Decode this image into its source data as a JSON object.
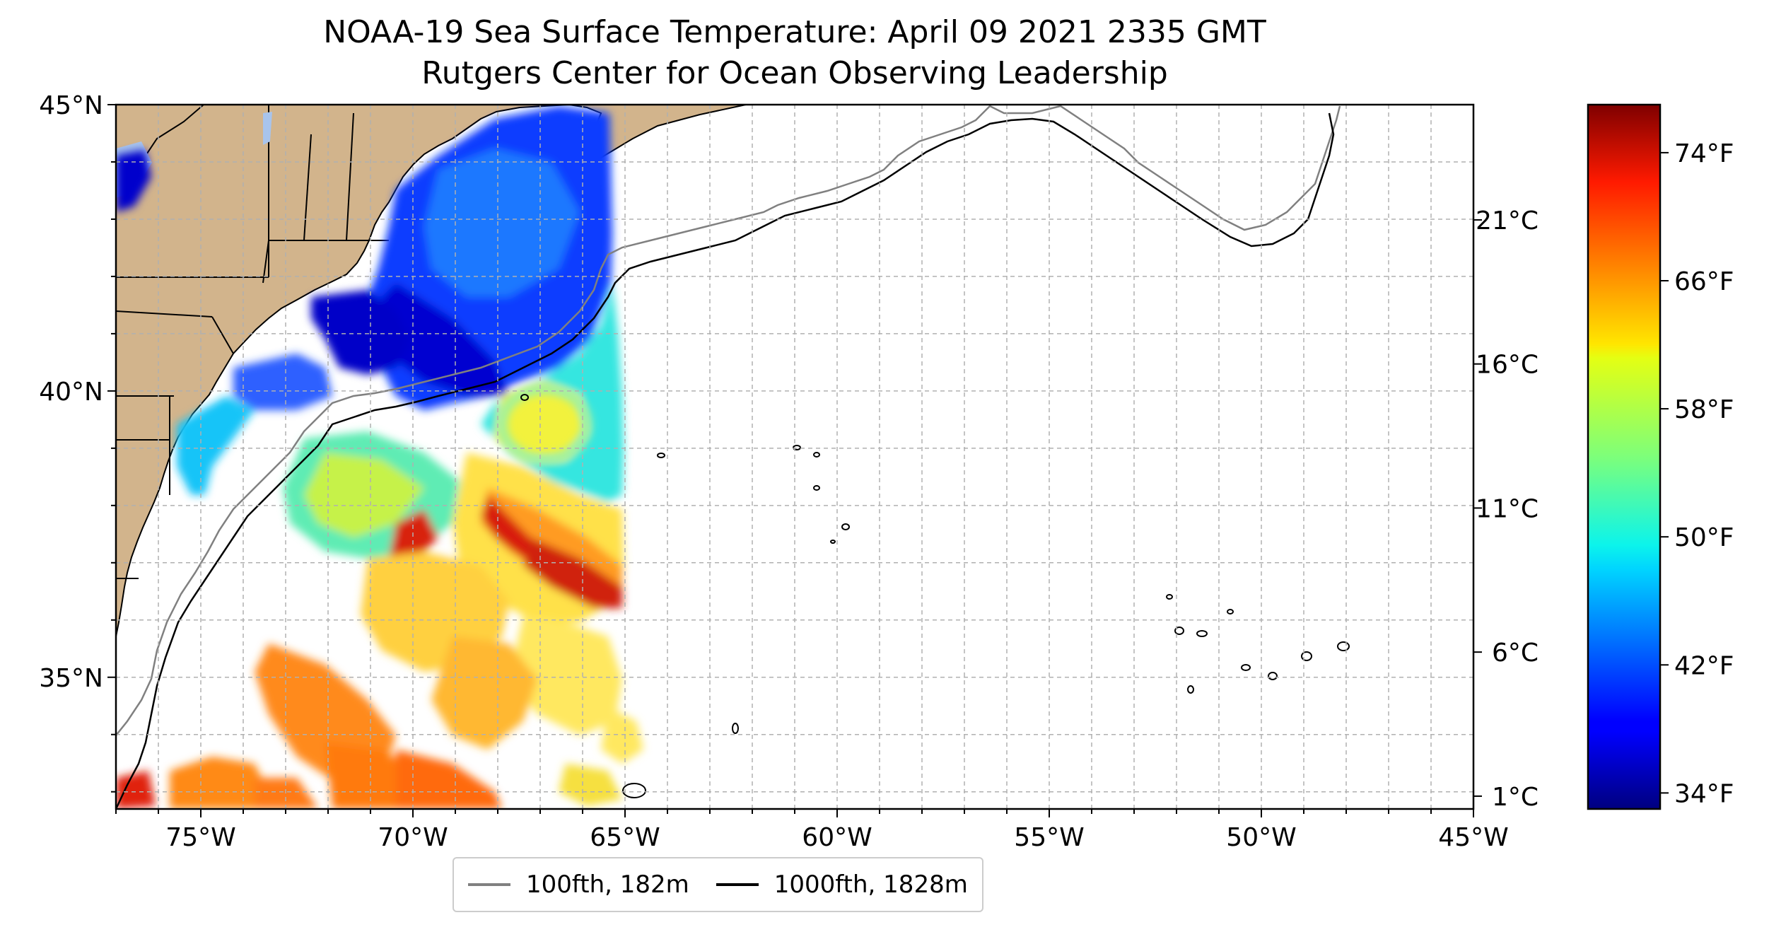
{
  "title": {
    "line1": "NOAA-19 Sea Surface Temperature: April 09 2021 2335 GMT",
    "line2": "Rutgers Center for Ocean Observing Leadership"
  },
  "map": {
    "lon_range": [
      -77,
      -45
    ],
    "lat_range": [
      32.7,
      45
    ],
    "lon_ticks": [
      {
        "value": -75,
        "label": "75°W"
      },
      {
        "value": -70,
        "label": "70°W"
      },
      {
        "value": -65,
        "label": "65°W"
      },
      {
        "value": -60,
        "label": "60°W"
      },
      {
        "value": -55,
        "label": "55°W"
      },
      {
        "value": -50,
        "label": "50°W"
      },
      {
        "value": -45,
        "label": "45°W"
      }
    ],
    "lat_ticks": [
      {
        "value": 45,
        "label": "45°N"
      },
      {
        "value": 40,
        "label": "40°N"
      },
      {
        "value": 35,
        "label": "35°N"
      }
    ],
    "gridlines": "dashed",
    "land_color": "#d2b48c"
  },
  "colorbar": {
    "colormap": "jet",
    "celsius_ticks": [
      {
        "value": 1,
        "label": "1°C"
      },
      {
        "value": 6,
        "label": "6°C"
      },
      {
        "value": 11,
        "label": "11°C"
      },
      {
        "value": 16,
        "label": "16°C"
      },
      {
        "value": 21,
        "label": "21°C"
      }
    ],
    "fahrenheit_ticks": [
      {
        "value": 34,
        "label": "34°F"
      },
      {
        "value": 42,
        "label": "42°F"
      },
      {
        "value": 50,
        "label": "50°F"
      },
      {
        "value": 58,
        "label": "58°F"
      },
      {
        "value": 66,
        "label": "66°F"
      },
      {
        "value": 74,
        "label": "74°F"
      }
    ],
    "range_f": [
      33,
      77
    ]
  },
  "legend": {
    "items": [
      {
        "label": "100fth, 182m",
        "color": "#808080"
      },
      {
        "label": "1000fth, 1828m",
        "color": "#000000"
      }
    ]
  }
}
